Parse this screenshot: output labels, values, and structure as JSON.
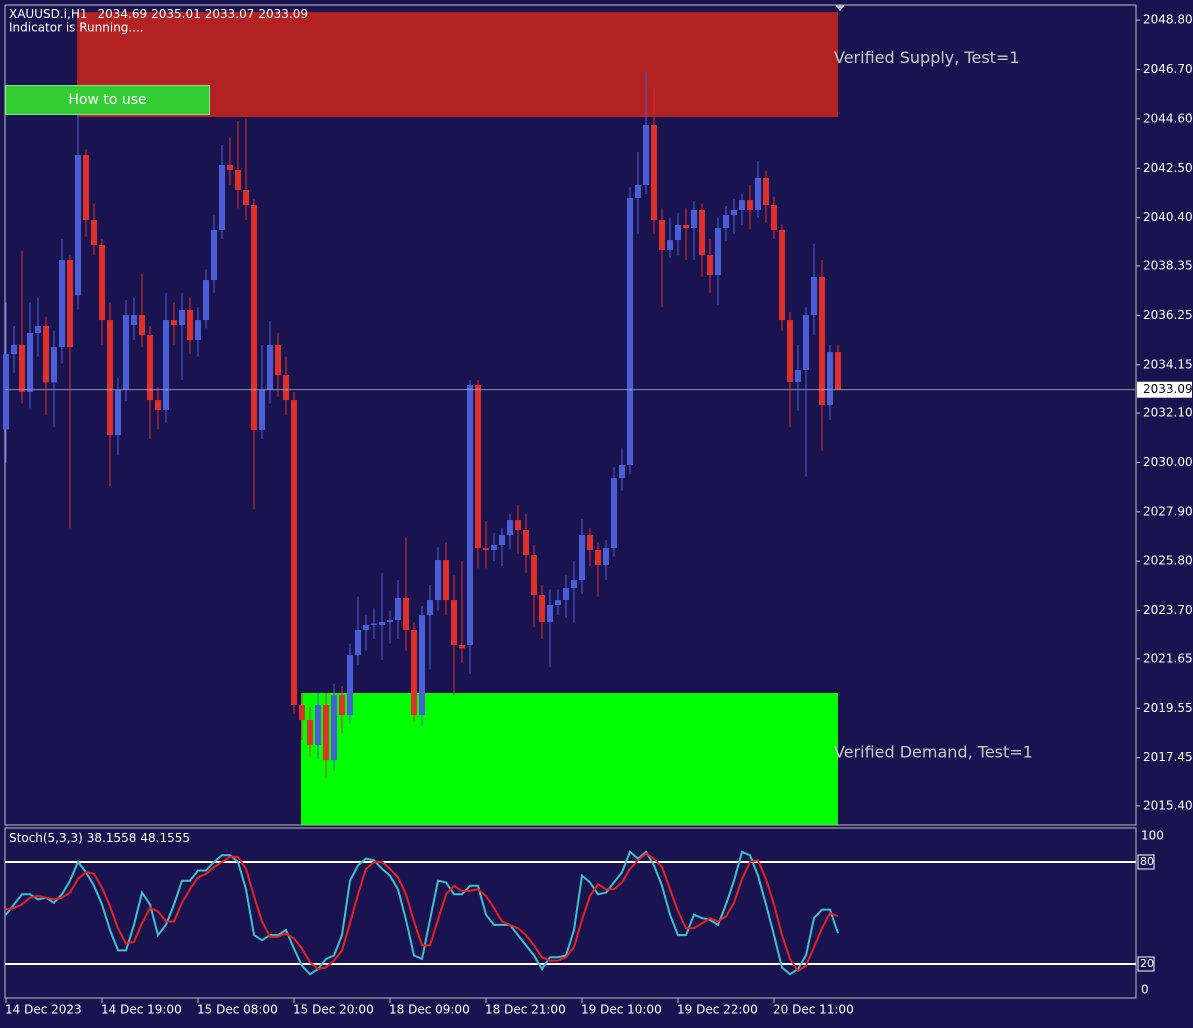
{
  "chart_data": [
    {
      "type": "candlestick",
      "title": "XAUUSD.i,H1",
      "subtitle": "Indicator is Running....",
      "categories": [
        "14 Dec 2023",
        null,
        null,
        null,
        null,
        null,
        null,
        null,
        null,
        null,
        null,
        null,
        "14 Dec 19:00",
        null,
        null,
        null,
        null,
        null,
        null,
        null,
        null,
        null,
        null,
        null,
        "15 Dec 08:00",
        null,
        null,
        null,
        null,
        null,
        null,
        null,
        null,
        null,
        null,
        null,
        "15 Dec 20:00",
        null,
        null,
        null,
        null,
        null,
        null,
        null,
        null,
        null,
        null,
        null,
        "18 Dec 09:00",
        null,
        null,
        null,
        null,
        null,
        null,
        null,
        null,
        null,
        null,
        null,
        "18 Dec 21:00",
        null,
        null,
        null,
        null,
        null,
        null,
        null,
        null,
        null,
        null,
        null,
        "19 Dec 10:00",
        null,
        null,
        null,
        null,
        null,
        null,
        null,
        null,
        null,
        null,
        null,
        "19 Dec 22:00",
        null,
        null,
        null,
        null,
        null,
        null,
        null,
        null,
        null,
        null,
        null,
        "20 Dec 11:00",
        null,
        null,
        null,
        null,
        null,
        null,
        null,
        null
      ],
      "candles": [
        [
          2031.4,
          2036.8,
          2030.0,
          2034.6
        ],
        [
          2034.6,
          2035.8,
          2033.8,
          2035.0
        ],
        [
          2035.0,
          2039.0,
          2032.5,
          2033.0
        ],
        [
          2033.0,
          2036.8,
          2032.3,
          2035.5
        ],
        [
          2035.5,
          2037.0,
          2034.5,
          2035.8
        ],
        [
          2035.8,
          2036.2,
          2032.0,
          2033.4
        ],
        [
          2033.4,
          2035.6,
          2031.5,
          2034.9
        ],
        [
          2034.9,
          2039.5,
          2034.2,
          2038.6
        ],
        [
          2038.6,
          2038.8,
          2027.2,
          2034.9
        ],
        [
          2037.1,
          2044.8,
          2036.5,
          2043.06
        ],
        [
          2043.06,
          2043.3,
          2039.6,
          2040.3
        ],
        [
          2040.3,
          2041.0,
          2038.8,
          2039.24
        ],
        [
          2039.24,
          2039.5,
          2035.0,
          2036.05
        ],
        [
          2036.05,
          2036.8,
          2029.0,
          2031.16
        ],
        [
          2031.16,
          2033.6,
          2030.3,
          2033.08
        ],
        [
          2033.08,
          2036.9,
          2032.6,
          2036.26
        ],
        [
          2035.84,
          2037.0,
          2035.2,
          2036.26
        ],
        [
          2036.26,
          2038.0,
          2034.9,
          2035.41
        ],
        [
          2035.41,
          2035.8,
          2031.0,
          2032.65
        ],
        [
          2032.65,
          2033.2,
          2031.4,
          2032.23
        ],
        [
          2032.23,
          2037.2,
          2031.7,
          2036.05
        ],
        [
          2036.05,
          2036.8,
          2035.0,
          2035.84
        ],
        [
          2035.84,
          2037.2,
          2033.5,
          2036.48
        ],
        [
          2036.48,
          2037.0,
          2034.6,
          2035.2
        ],
        [
          2035.2,
          2036.6,
          2034.5,
          2036.05
        ],
        [
          2036.05,
          2038.2,
          2035.7,
          2037.75
        ],
        [
          2037.75,
          2040.5,
          2037.2,
          2039.88
        ],
        [
          2039.88,
          2043.5,
          2039.5,
          2042.64
        ],
        [
          2042.64,
          2043.8,
          2041.8,
          2042.43
        ],
        [
          2042.43,
          2044.5,
          2040.8,
          2041.58
        ],
        [
          2041.58,
          2044.6,
          2040.3,
          2040.94
        ],
        [
          2040.94,
          2041.2,
          2028.0,
          2031.38
        ],
        [
          2031.38,
          2035.0,
          2031.0,
          2033.08
        ],
        [
          2033.08,
          2036.0,
          2032.5,
          2034.99
        ],
        [
          2034.99,
          2035.5,
          2032.8,
          2033.71
        ],
        [
          2033.71,
          2034.5,
          2032.0,
          2032.65
        ],
        [
          2032.65,
          2033.0,
          2019.3,
          2019.69
        ],
        [
          2019.69,
          2020.2,
          2018.2,
          2019.05
        ],
        [
          2019.05,
          2019.6,
          2017.5,
          2017.99
        ],
        [
          2017.99,
          2020.2,
          2017.4,
          2019.69
        ],
        [
          2019.69,
          2020.2,
          2016.6,
          2017.35
        ],
        [
          2017.35,
          2020.6,
          2016.9,
          2020.11
        ],
        [
          2020.11,
          2020.5,
          2018.5,
          2019.26
        ],
        [
          2019.26,
          2022.3,
          2018.9,
          2021.81
        ],
        [
          2021.81,
          2024.3,
          2021.4,
          2022.88
        ],
        [
          2022.88,
          2023.5,
          2022.0,
          2023.09
        ],
        [
          2023.09,
          2023.8,
          2022.5,
          2023.15
        ],
        [
          2023.09,
          2025.3,
          2021.6,
          2023.22
        ],
        [
          2023.22,
          2023.7,
          2022.3,
          2023.3
        ],
        [
          2023.3,
          2025.0,
          2022.5,
          2024.24
        ],
        [
          2024.24,
          2026.8,
          2022.0,
          2022.88
        ],
        [
          2022.88,
          2023.2,
          2019.0,
          2019.26
        ],
        [
          2019.26,
          2023.9,
          2018.8,
          2023.51
        ],
        [
          2023.51,
          2024.8,
          2021.2,
          2024.15
        ],
        [
          2024.15,
          2026.4,
          2023.7,
          2025.85
        ],
        [
          2025.85,
          2026.6,
          2023.5,
          2024.15
        ],
        [
          2024.15,
          2025.2,
          2020.1,
          2022.24
        ],
        [
          2022.24,
          2025.8,
          2021.5,
          2022.1
        ],
        [
          2022.24,
          2033.5,
          2021.0,
          2033.29
        ],
        [
          2033.29,
          2033.5,
          2025.5,
          2026.36
        ],
        [
          2026.36,
          2027.5,
          2025.5,
          2026.28
        ],
        [
          2026.28,
          2027.0,
          2025.8,
          2026.49
        ],
        [
          2026.49,
          2027.2,
          2025.6,
          2026.91
        ],
        [
          2026.91,
          2027.8,
          2026.3,
          2027.55
        ],
        [
          2027.55,
          2028.2,
          2026.1,
          2027.13
        ],
        [
          2027.13,
          2027.8,
          2025.3,
          2026.06
        ],
        [
          2026.06,
          2026.5,
          2023.0,
          2024.36
        ],
        [
          2024.36,
          2024.8,
          2022.5,
          2023.22
        ],
        [
          2023.22,
          2024.6,
          2021.3,
          2023.94
        ],
        [
          2023.94,
          2024.6,
          2023.5,
          2024.15
        ],
        [
          2024.15,
          2025.2,
          2023.4,
          2024.66
        ],
        [
          2024.66,
          2025.8,
          2023.2,
          2025.0
        ],
        [
          2025.0,
          2027.6,
          2024.4,
          2026.91
        ],
        [
          2026.91,
          2027.2,
          2025.6,
          2026.28
        ],
        [
          2026.28,
          2026.6,
          2024.3,
          2025.64
        ],
        [
          2025.64,
          2026.7,
          2025.0,
          2026.36
        ],
        [
          2026.36,
          2029.8,
          2026.0,
          2029.33
        ],
        [
          2029.33,
          2030.6,
          2028.8,
          2029.89
        ],
        [
          2029.89,
          2041.7,
          2029.5,
          2041.24
        ],
        [
          2041.24,
          2043.2,
          2039.7,
          2041.79
        ],
        [
          2041.79,
          2046.6,
          2041.4,
          2044.34
        ],
        [
          2044.34,
          2045.9,
          2039.7,
          2040.3
        ],
        [
          2040.3,
          2040.8,
          2036.6,
          2039.03
        ],
        [
          2039.03,
          2040.4,
          2038.7,
          2039.45
        ],
        [
          2039.45,
          2040.6,
          2038.8,
          2040.09
        ],
        [
          2040.09,
          2040.8,
          2038.6,
          2039.96
        ],
        [
          2039.96,
          2041.1,
          2038.6,
          2040.73
        ],
        [
          2040.73,
          2041.0,
          2037.9,
          2038.81
        ],
        [
          2038.81,
          2039.5,
          2037.2,
          2037.96
        ],
        [
          2037.96,
          2040.4,
          2036.7,
          2039.96
        ],
        [
          2039.96,
          2040.9,
          2039.4,
          2040.51
        ],
        [
          2040.51,
          2041.2,
          2039.7,
          2040.73
        ],
        [
          2040.73,
          2041.4,
          2040.1,
          2041.15
        ],
        [
          2041.15,
          2041.8,
          2039.9,
          2040.73
        ],
        [
          2040.73,
          2042.8,
          2040.4,
          2042.09
        ],
        [
          2042.09,
          2042.4,
          2040.2,
          2040.94
        ],
        [
          2040.94,
          2041.3,
          2039.5,
          2039.88
        ],
        [
          2039.88,
          2040.1,
          2035.6,
          2036.05
        ],
        [
          2036.05,
          2036.4,
          2031.5,
          2033.42
        ],
        [
          2033.42,
          2035.0,
          2032.2,
          2033.93
        ],
        [
          2033.93,
          2036.6,
          2029.4,
          2036.26
        ],
        [
          2036.26,
          2039.3,
          2035.4,
          2037.88
        ],
        [
          2037.88,
          2038.6,
          2030.5,
          2032.44
        ],
        [
          2032.44,
          2035.0,
          2031.8,
          2034.69
        ],
        [
          2034.69,
          2035.01,
          2033.07,
          2033.09
        ]
      ],
      "up_color": "#4a5fd6",
      "down_color": "#e0302a",
      "zones": [
        {
          "label": "Verified Supply, Test=1",
          "top": 2049.14,
          "bottom": 2044.68,
          "start": 9,
          "end": 104,
          "color": "#b22222"
        },
        {
          "label": "Verified Demand, Test=1",
          "top": 2020.2,
          "bottom": 2014.6,
          "start": 37,
          "end": 104,
          "color": "#00ff00"
        }
      ],
      "ylim": [
        2014.59,
        2049.44
      ],
      "yticks": [
        {
          "value": 2048.8,
          "label": "2048.80"
        },
        {
          "value": 2046.7,
          "label": "2046.70"
        },
        {
          "value": 2044.6,
          "label": "2044.60"
        },
        {
          "value": 2042.5,
          "label": "2042.50"
        },
        {
          "value": 2040.4,
          "label": "2040.40"
        },
        {
          "value": 2038.35,
          "label": "2038.35"
        },
        {
          "value": 2036.25,
          "label": "2036.25"
        },
        {
          "value": 2034.15,
          "label": "2034.15"
        },
        {
          "value": 2032.1,
          "label": "2032.10"
        },
        {
          "value": 2030,
          "label": "2030.00"
        },
        {
          "value": 2027.9,
          "label": "2027.90"
        },
        {
          "value": 2025.8,
          "label": "2025.80"
        },
        {
          "value": 2023.7,
          "label": "2023.70"
        },
        {
          "value": 2021.65,
          "label": "2021.65"
        },
        {
          "value": 2019.55,
          "label": "2019.55"
        },
        {
          "value": 2017.45,
          "label": "2017.45"
        },
        {
          "value": 2015.4,
          "label": "2015.40"
        }
      ]
    },
    {
      "type": "line",
      "title": "Stoch(5,3,3)",
      "series": [
        {
          "name": "K",
          "color": "#3fc1c9",
          "values": [
            49,
            55,
            61,
            61,
            58,
            59,
            56,
            61,
            69,
            80,
            74,
            66,
            55,
            40,
            28,
            28,
            43,
            62,
            55,
            37,
            43,
            55,
            69,
            69,
            75,
            75,
            80,
            84,
            84,
            80,
            64,
            37,
            34,
            37,
            37,
            40,
            29,
            19,
            14,
            17,
            23,
            25,
            37,
            69,
            78,
            82,
            81,
            76,
            72,
            64,
            46,
            25,
            23,
            46,
            69,
            68,
            61,
            61,
            66,
            66,
            49,
            43,
            43,
            43,
            37,
            31,
            25,
            17,
            24,
            24,
            25,
            40,
            72,
            68,
            61,
            62,
            68,
            74,
            86,
            82,
            86,
            78,
            66,
            49,
            37,
            37,
            49,
            47,
            46,
            43,
            55,
            69,
            86,
            84,
            72,
            55,
            37,
            18,
            14,
            17,
            25,
            47,
            52,
            52,
            38.1558
          ]
        },
        {
          "name": "D",
          "color": "#e8201e",
          "values": [
            52,
            53,
            55,
            59,
            60,
            59,
            58,
            59,
            62,
            70,
            74,
            73,
            65,
            54,
            41,
            32,
            33,
            44,
            53,
            51,
            45,
            45,
            56,
            64,
            71,
            73,
            77,
            80,
            83,
            83,
            76,
            60,
            45,
            36,
            36,
            38,
            35,
            29,
            21,
            17,
            18,
            22,
            28,
            44,
            61,
            76,
            80,
            80,
            76,
            71,
            61,
            45,
            31,
            31,
            46,
            61,
            66,
            63,
            63,
            64,
            60,
            53,
            45,
            43,
            41,
            37,
            31,
            24,
            22,
            22,
            24,
            30,
            46,
            60,
            67,
            64,
            64,
            68,
            76,
            81,
            85,
            82,
            77,
            64,
            51,
            41,
            41,
            44,
            47,
            45,
            48,
            56,
            70,
            80,
            81,
            70,
            55,
            37,
            23,
            16,
            19,
            30,
            41,
            50,
            48.1555
          ]
        }
      ],
      "ylim": [
        0,
        100
      ],
      "yticks": [
        100,
        0
      ],
      "levels": [
        80,
        20
      ]
    }
  ],
  "button": "How to use"
}
